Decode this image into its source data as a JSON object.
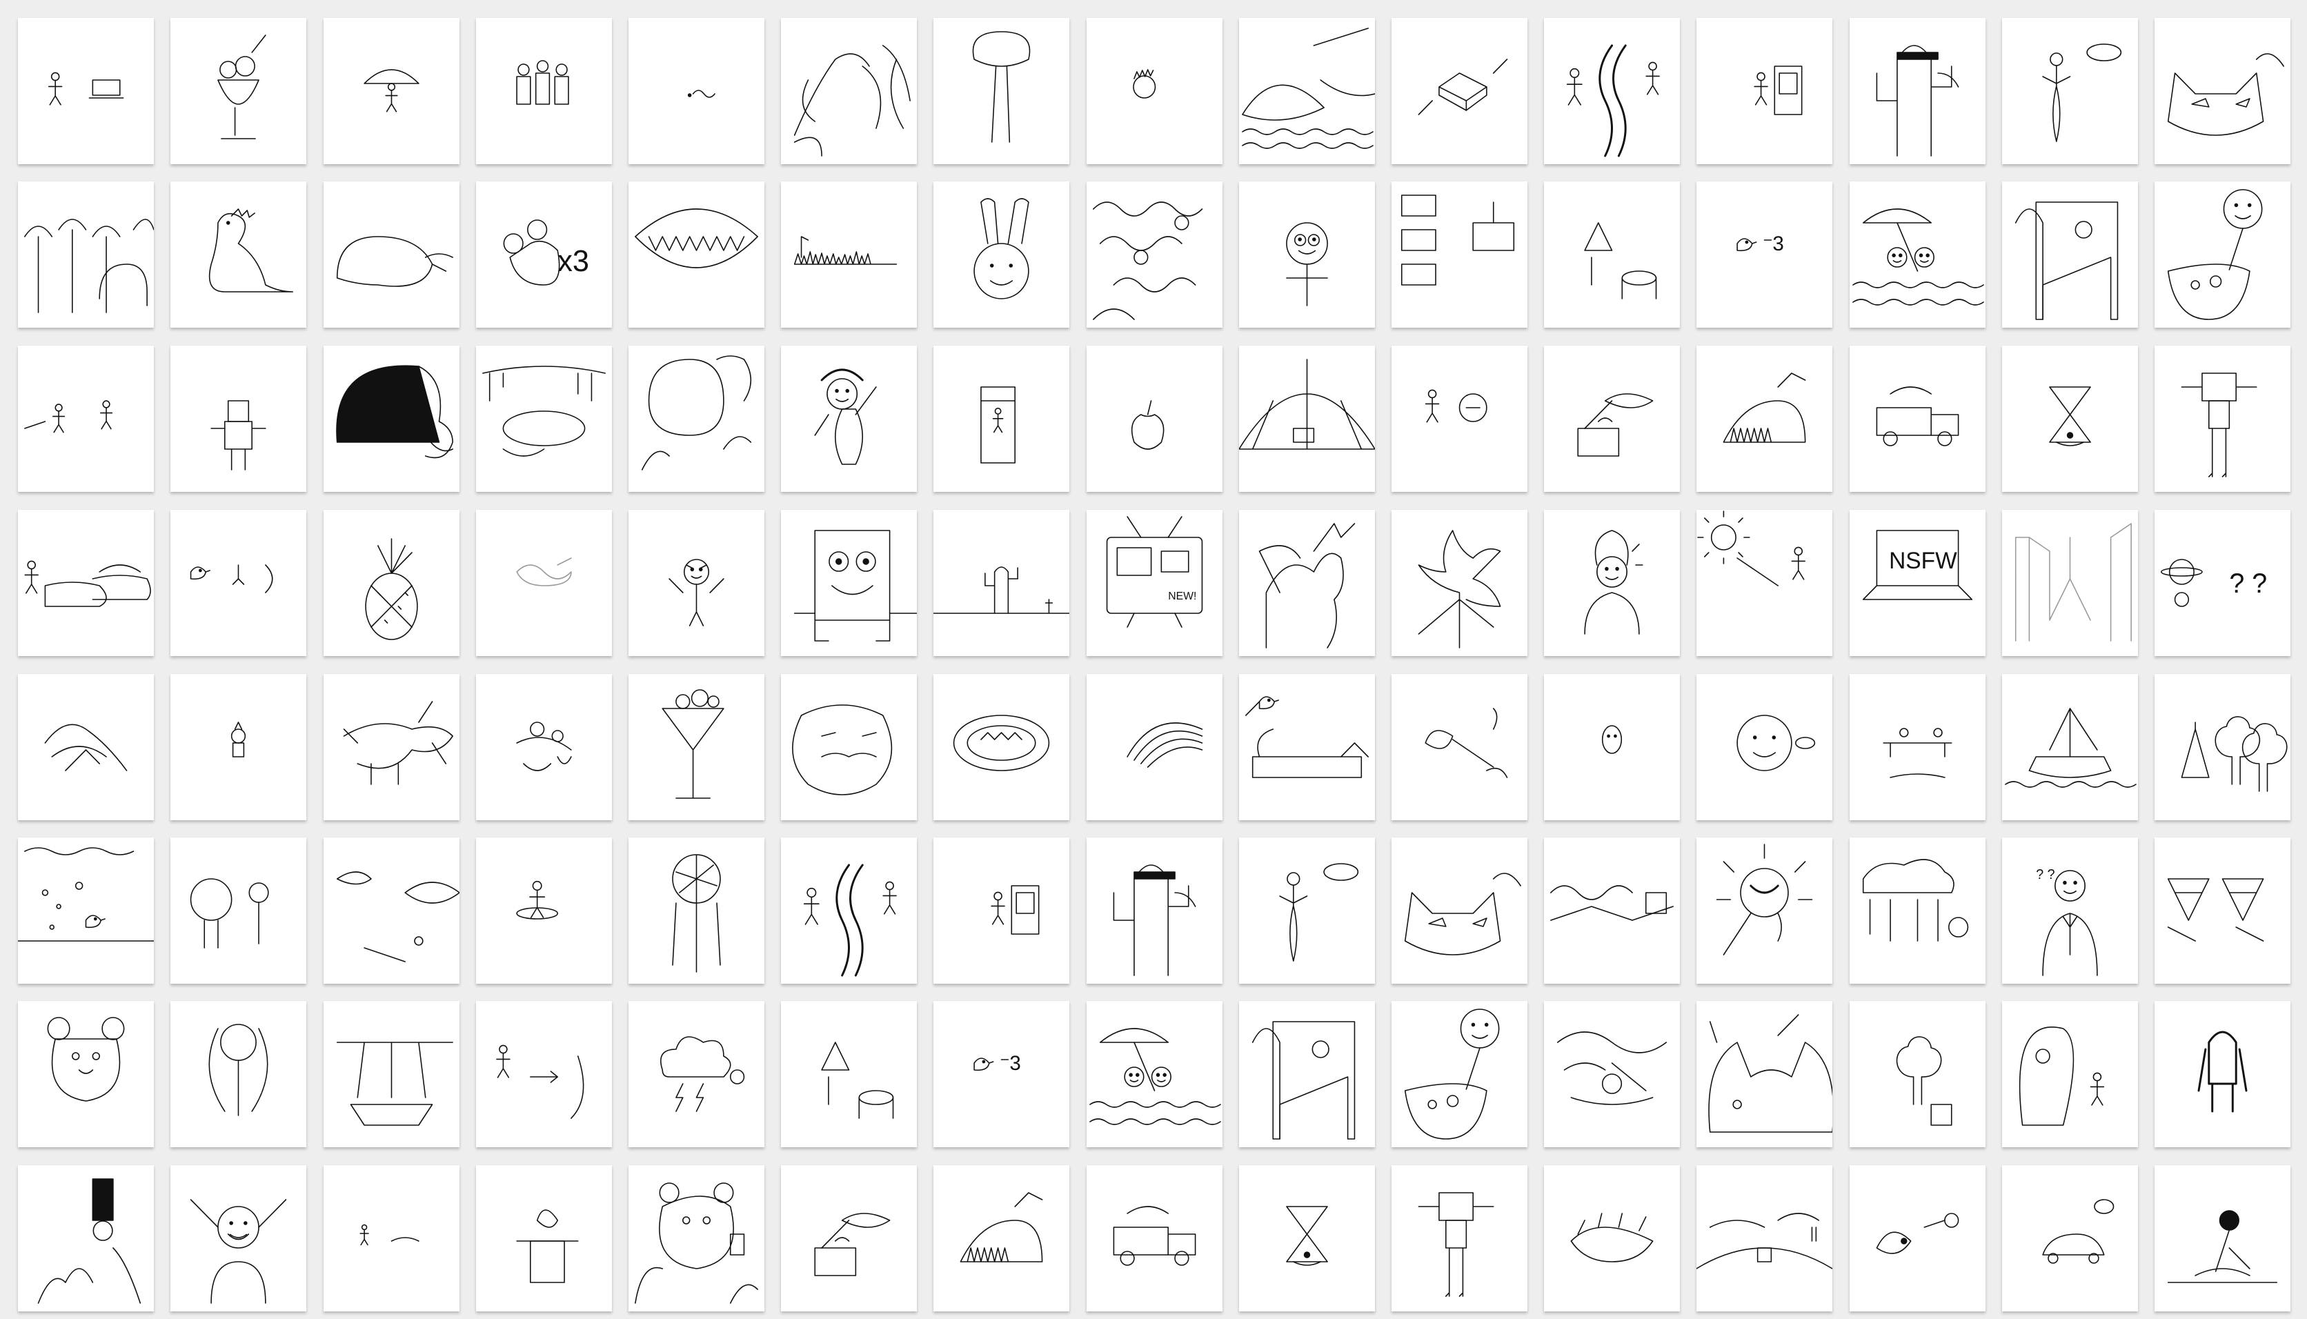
{
  "gallery": {
    "columns": 15,
    "rows": 8,
    "texts": {
      "tile_x3": "x3",
      "tile_score_3": "3",
      "tile_nsfw": "NSFW",
      "tile_new": "NEW!",
      "tile_question": "? ?"
    },
    "drawings": [
      "stick-figure-with-laptop",
      "ice-cream-sundae",
      "mushroom-figure",
      "group-of-characters",
      "small-scribble",
      "two-faces",
      "tree-with-brain",
      "spiky-hair-head",
      "fish-and-boat",
      "floating-house",
      "traveler-on-road",
      "person-at-door",
      "cactus-with-sunglasses",
      "woman-with-speech-bubble",
      "cat-face",
      "forest-with-elephant",
      "dinosaur",
      "sleeping-animal",
      "mouse-times-three",
      "mouth-with-teeth",
      "grass-field",
      "rabbit-face",
      "wavy-sea-creatures",
      "person-with-glasses",
      "map-panels",
      "figure-at-table",
      "bird-score-three",
      "beach-umbrella",
      "pinball-machine",
      "stick-figure-with-pot",
      "two-stick-figures",
      "robot-figure",
      "black-hair-face",
      "desert-oasis",
      "face-with-hand",
      "waving-girl",
      "person-in-phone-booth",
      "small-apple",
      "circus-tent",
      "figure-with-sign",
      "lips-on-table",
      "creature-in-grass",
      "truck-scene",
      "hourglass",
      "robot-on-stilts",
      "herd-of-animals",
      "small-figures",
      "pineapple",
      "faint-scribble",
      "angry-figure",
      "sponge-character",
      "cactus-in-desert",
      "tv-with-news",
      "horse-and-tree",
      "dragon-tree",
      "woman-portrait",
      "sunny-day",
      "nsfw-laptop",
      "city-street",
      "planets-and-questions",
      "sketchy-hands",
      "tiny-figure",
      "bull-in-field",
      "crowd-scribble",
      "martini-glass",
      "mustache-face",
      "bowl-of-food",
      "rainbow",
      "dog-and-bird",
      "smoking-pipe",
      "small-face",
      "big-face-with-bubble",
      "two-figures",
      "sailboat",
      "party-hats",
      "underwater-scene",
      "two-characters",
      "lips-and-eyes",
      "hula-figure",
      "dreamcatcher",
      "traveler-on-road",
      "person-at-door",
      "cactus-with-sunglasses",
      "woman-with-speech-bubble",
      "cat-face",
      "wavy-sky",
      "spiky-sun",
      "animal-picnic",
      "man-in-suit",
      "pizza-slices",
      "bear-character",
      "girl-with-hair",
      "hanging-fish",
      "walking-arrow",
      "storm-cloud",
      "figure-at-table",
      "bird-score-three",
      "beach-umbrella",
      "pinball-machine",
      "stick-figure-with-pot",
      "messy-sketch",
      "cat-ears",
      "tree-and-house",
      "ghost-and-figure",
      "hairy-creature",
      "tall-hat-figure",
      "cheering-figure",
      "two-small-figures",
      "magic-hat",
      "bear-with-phone",
      "lips-on-table",
      "creature-in-grass",
      "truck-scene",
      "hourglass",
      "robot-on-stilts",
      "creatures-scene",
      "hill-landscape",
      "bird-with-eye",
      "car-and-sign",
      "figure-with-hair"
    ]
  }
}
